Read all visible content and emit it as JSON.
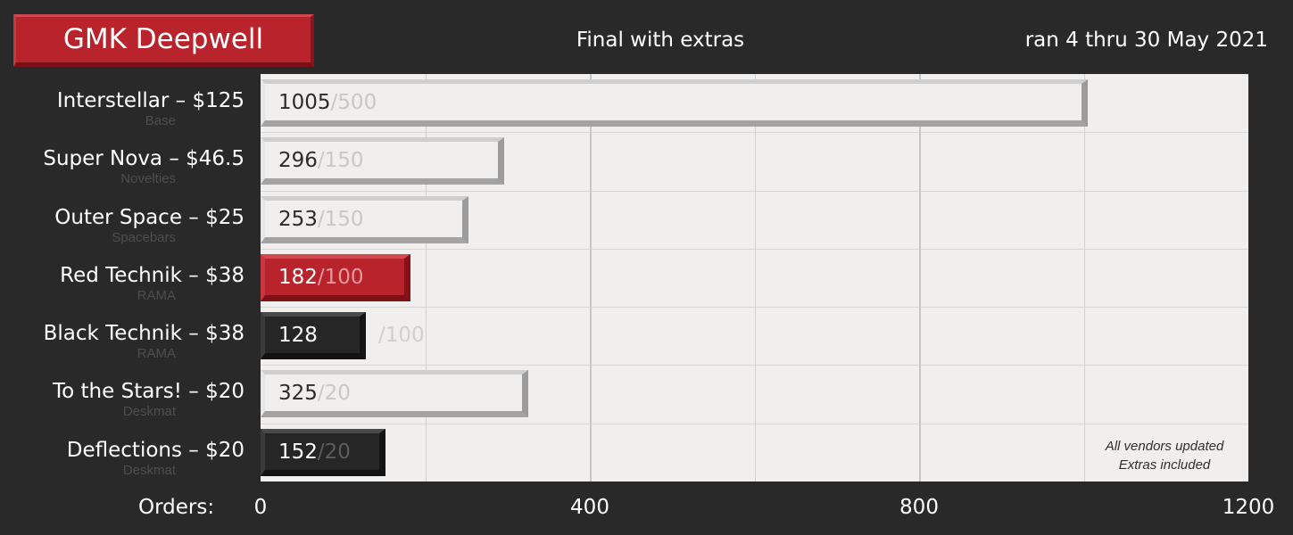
{
  "header": {
    "title": "GMK Deepwell",
    "subtitle": "Final with extras",
    "dates": "ran 4 thru 30 May 2021"
  },
  "colors": {
    "background": "#282928",
    "plot_background": "#f0efee",
    "red_accent": "#b8232c",
    "dark_bar": "#262626",
    "light_bar": "#f0efee"
  },
  "note": {
    "line1": "All vendors updated",
    "line2": "Extras included"
  },
  "chart_data": {
    "type": "bar",
    "orientation": "horizontal",
    "title": "GMK Deepwell",
    "subtitle": "Final with extras",
    "xlabel": "Orders:",
    "xlim": [
      0,
      1200
    ],
    "xticks": [
      0,
      400,
      800,
      1200
    ],
    "grid": true,
    "categories": [
      {
        "label": "Interstellar – $125",
        "sub": "Base",
        "value": 1005,
        "min": "/500",
        "min_value": 500,
        "style": "light"
      },
      {
        "label": "Super Nova – $46.5",
        "sub": "Novelties",
        "value": 296,
        "min": "/150",
        "min_value": 150,
        "style": "light"
      },
      {
        "label": "Outer Space – $25",
        "sub": "Spacebars",
        "value": 253,
        "min": "/150",
        "min_value": 150,
        "style": "light"
      },
      {
        "label": "Red Technik – $38",
        "sub": "RAMA",
        "value": 182,
        "min": "/100",
        "min_value": 100,
        "style": "red"
      },
      {
        "label": "Black Technik – $38",
        "sub": "RAMA",
        "value": 128,
        "min": "/100",
        "min_value": 100,
        "style": "dark"
      },
      {
        "label": "To the Stars! – $20",
        "sub": "Deskmat",
        "value": 325,
        "min": "/20",
        "min_value": 20,
        "style": "light"
      },
      {
        "label": "Deflections – $20",
        "sub": "Deskmat",
        "value": 152,
        "min": "/20",
        "min_value": 20,
        "style": "dark"
      }
    ]
  }
}
